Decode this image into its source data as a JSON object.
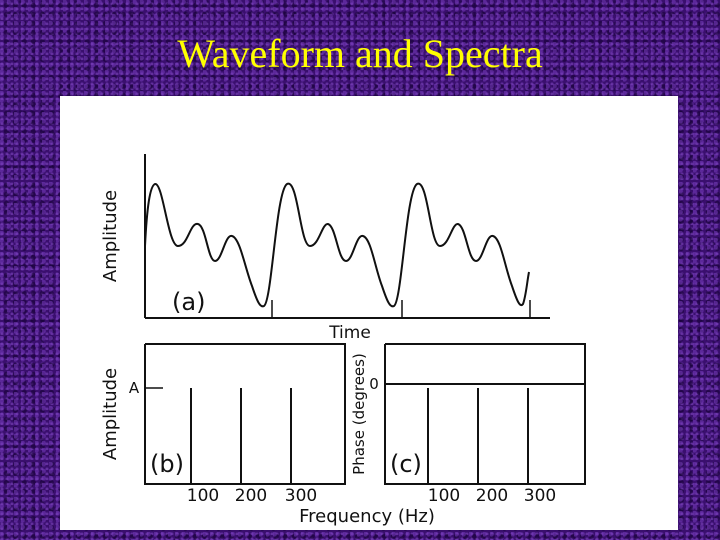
{
  "slide": {
    "title": "Waveform and Spectra",
    "title_color": "#ffff00",
    "background_color": "#3a0f6e"
  },
  "figure": {
    "panel_a": {
      "label": "(a)",
      "ylabel": "Amplitude",
      "xlabel": "Time"
    },
    "panel_b": {
      "label": "(b)",
      "ylabel": "Amplitude",
      "level_label": "A",
      "tick_labels": [
        "100",
        "200",
        "300"
      ]
    },
    "panel_c": {
      "label": "(c)",
      "ylabel": "Phase (degrees)",
      "level_label": "0",
      "tick_labels": [
        "100",
        "200",
        "300"
      ]
    },
    "shared_xlabel": "Frequency (Hz)"
  }
}
